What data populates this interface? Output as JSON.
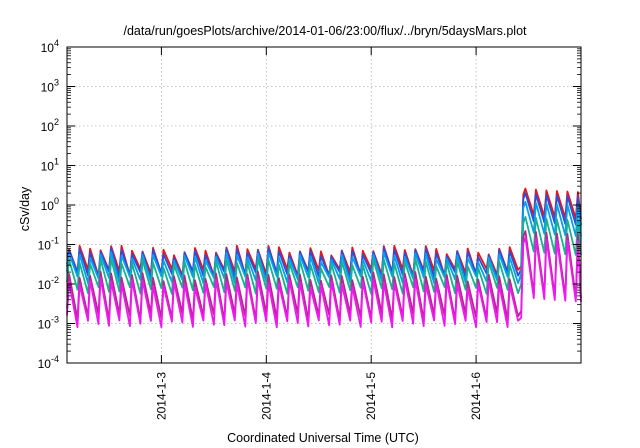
{
  "chart_data": {
    "type": "line",
    "title": "/data/run/goesPlots/archive/2014-01-06/23:00/flux/../bryn/5daysMars.plot",
    "xlabel": "Coordinated Universal Time (UTC)",
    "ylabel": "cSv/day",
    "x_range_days": [
      2.1,
      7.0
    ],
    "x_ticks": [
      {
        "day": 3,
        "label": "2014-1-3"
      },
      {
        "day": 4,
        "label": "2014-1-4"
      },
      {
        "day": 5,
        "label": "2014-1-5"
      },
      {
        "day": 6,
        "label": "2014-1-6"
      }
    ],
    "y_scale": "log",
    "ylim": [
      0.0001,
      10000
    ],
    "y_ticks": [
      {
        "value": 0.0001,
        "base": "10",
        "exp": "-4"
      },
      {
        "value": 0.001,
        "base": "10",
        "exp": "-3"
      },
      {
        "value": 0.01,
        "base": "10",
        "exp": "-2"
      },
      {
        "value": 0.1,
        "base": "10",
        "exp": "-1"
      },
      {
        "value": 1,
        "base": "10",
        "exp": "0"
      },
      {
        "value": 10,
        "base": "10",
        "exp": "1"
      },
      {
        "value": 100,
        "base": "10",
        "exp": "2"
      },
      {
        "value": 1000,
        "base": "10",
        "exp": "3"
      },
      {
        "value": 10000,
        "base": "10",
        "exp": "4"
      }
    ],
    "grid": true,
    "legend": "none",
    "sawtooth": {
      "start_day": 2.1,
      "end_day": 6.4,
      "period_days": 0.1,
      "step_day": 6.45,
      "final_day": 7.0
    },
    "series": [
      {
        "color": "#e8141b",
        "peak": 0.075,
        "trough": 0.02,
        "post_peak": 2.6,
        "post_trough": 0.5
      },
      {
        "color": "#2850dc",
        "peak": 0.065,
        "trough": 0.017,
        "post_peak": 2.0,
        "post_trough": 0.35
      },
      {
        "color": "#00a0f0",
        "peak": 0.05,
        "trough": 0.013,
        "post_peak": 1.2,
        "post_trough": 0.18
      },
      {
        "color": "#18b090",
        "peak": 0.035,
        "trough": 0.007,
        "post_peak": 0.5,
        "post_trough": 0.06
      },
      {
        "color": "#b4288c",
        "peak": 0.016,
        "trough": 0.0015,
        "post_peak": 0.22,
        "post_trough": 0.005
      },
      {
        "color": "#f018f0",
        "peak": 0.011,
        "trough": 0.001,
        "post_peak": 0.15,
        "post_trough": 0.004
      }
    ]
  }
}
